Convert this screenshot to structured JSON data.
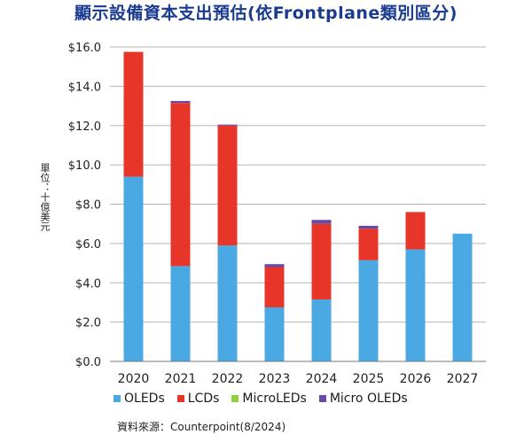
{
  "title": "顯示設備資本支出預估(依Frontplane類別區分)",
  "source": "資料來源：Counterpoint(8/2024)",
  "colors": {
    "OLEDs": "#4aa9e3",
    "LCDs": "#e8352a",
    "MicroLEDs": "#8fcf3c",
    "Micro OLEDs": "#6a4aa3"
  },
  "chart_data": {
    "type": "bar",
    "stacked": true,
    "title": "顯示設備資本支出預估(依Frontplane類別區分)",
    "ylabel": "單位：十億美元",
    "xlabel": "",
    "categories": [
      "2020",
      "2021",
      "2022",
      "2023",
      "2024",
      "2025",
      "2026",
      "2027"
    ],
    "ylim": [
      0,
      16
    ],
    "yticks": [
      "$0.0",
      "$2.0",
      "$4.0",
      "$6.0",
      "$8.0",
      "$10.0",
      "$12.0",
      "$14.0",
      "$16.0"
    ],
    "grid": true,
    "legend": "bottom",
    "series": [
      {
        "name": "OLEDs",
        "values": [
          9.4,
          4.85,
          5.9,
          2.75,
          3.15,
          5.15,
          5.7,
          6.5
        ]
      },
      {
        "name": "LCDs",
        "values": [
          6.35,
          8.3,
          6.1,
          2.05,
          3.85,
          1.6,
          1.9,
          0
        ]
      },
      {
        "name": "MicroLEDs",
        "values": [
          0,
          0,
          0,
          0,
          0,
          0,
          0,
          0
        ]
      },
      {
        "name": "Micro OLEDs",
        "values": [
          0,
          0.1,
          0.05,
          0.15,
          0.2,
          0.15,
          0,
          0
        ]
      }
    ]
  }
}
